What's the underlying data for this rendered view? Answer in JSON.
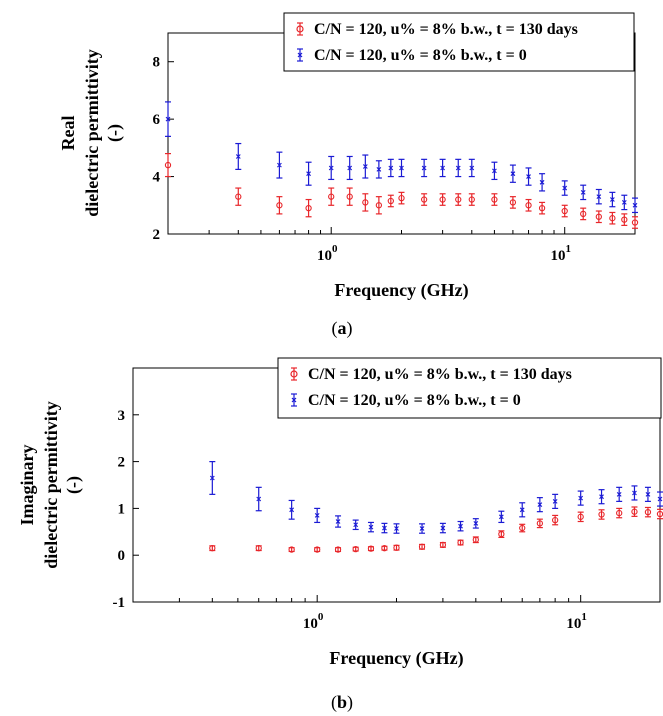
{
  "figure": {
    "caption_a": {
      "open": "(",
      "letter": "a",
      "close": ")"
    },
    "caption_b": {
      "open": "(",
      "letter": "b",
      "close": ")"
    }
  },
  "chart_data": [
    {
      "id": "a",
      "type": "scatter",
      "xlabel": "Frequency (GHz)",
      "ylabel_lines": [
        "Real",
        "dielectric permittivity",
        "(-)"
      ],
      "xscale": "log",
      "xlim": [
        0.2,
        20
      ],
      "ylim": [
        2,
        9
      ],
      "xticks": [
        {
          "value": 1,
          "base": "10",
          "exp": "0"
        },
        {
          "value": 10,
          "base": "10",
          "exp": "1"
        }
      ],
      "yticks": [
        2,
        4,
        6,
        8
      ],
      "grid": false,
      "legend_position": "top-right",
      "series": [
        {
          "name": "C/N = 120, u% = 8% b.w., t = 130 days",
          "color": "#e8262a",
          "marker": "circle",
          "x": [
            0.2,
            0.4,
            0.6,
            0.8,
            1.0,
            1.2,
            1.4,
            1.6,
            1.8,
            2.0,
            2.5,
            3.0,
            3.5,
            4.0,
            5.0,
            6.0,
            7.0,
            8.0,
            10.0,
            12.0,
            14.0,
            16.0,
            18.0,
            20.0
          ],
          "y": [
            4.4,
            3.3,
            3.0,
            2.9,
            3.3,
            3.3,
            3.1,
            3.0,
            3.15,
            3.25,
            3.2,
            3.2,
            3.2,
            3.2,
            3.2,
            3.1,
            3.0,
            2.9,
            2.8,
            2.7,
            2.6,
            2.55,
            2.5,
            2.4
          ],
          "err": [
            0.4,
            0.3,
            0.3,
            0.3,
            0.3,
            0.3,
            0.3,
            0.3,
            0.2,
            0.2,
            0.2,
            0.2,
            0.2,
            0.2,
            0.2,
            0.2,
            0.2,
            0.2,
            0.2,
            0.2,
            0.2,
            0.2,
            0.2,
            0.2
          ]
        },
        {
          "name": "C/N = 120, u% = 8% b.w., t = 0",
          "color": "#1a1ad4",
          "marker": "x",
          "x": [
            0.2,
            0.4,
            0.6,
            0.8,
            1.0,
            1.2,
            1.4,
            1.6,
            1.8,
            2.0,
            2.5,
            3.0,
            3.5,
            4.0,
            5.0,
            6.0,
            7.0,
            8.0,
            10.0,
            12.0,
            14.0,
            16.0,
            18.0,
            20.0
          ],
          "y": [
            6.0,
            4.7,
            4.4,
            4.1,
            4.3,
            4.3,
            4.35,
            4.25,
            4.3,
            4.3,
            4.3,
            4.3,
            4.3,
            4.3,
            4.2,
            4.1,
            4.0,
            3.8,
            3.6,
            3.45,
            3.3,
            3.2,
            3.1,
            3.0
          ],
          "err": [
            0.6,
            0.45,
            0.45,
            0.4,
            0.4,
            0.4,
            0.4,
            0.3,
            0.3,
            0.3,
            0.3,
            0.3,
            0.3,
            0.3,
            0.3,
            0.3,
            0.3,
            0.3,
            0.25,
            0.25,
            0.25,
            0.25,
            0.25,
            0.25
          ]
        }
      ]
    },
    {
      "id": "b",
      "type": "scatter",
      "xlabel": "Frequency (GHz)",
      "ylabel_lines": [
        "Imaginary",
        "dielectric permittivity",
        "(-)"
      ],
      "xscale": "log",
      "xlim": [
        0.2,
        20
      ],
      "ylim": [
        -1,
        4
      ],
      "xticks": [
        {
          "value": 1,
          "base": "10",
          "exp": "0"
        },
        {
          "value": 10,
          "base": "10",
          "exp": "1"
        }
      ],
      "yticks": [
        -1,
        0,
        1,
        2,
        3
      ],
      "grid": false,
      "legend_position": "top-right",
      "series": [
        {
          "name": "C/N = 120, u% = 8% b.w., t = 130 days",
          "color": "#e8262a",
          "marker": "circle",
          "x": [
            0.4,
            0.6,
            0.8,
            1.0,
            1.2,
            1.4,
            1.6,
            1.8,
            2.0,
            2.5,
            3.0,
            3.5,
            4.0,
            5.0,
            6.0,
            7.0,
            8.0,
            10.0,
            12.0,
            14.0,
            16.0,
            18.0,
            20.0
          ],
          "y": [
            0.15,
            0.15,
            0.12,
            0.12,
            0.12,
            0.13,
            0.14,
            0.15,
            0.16,
            0.18,
            0.22,
            0.27,
            0.33,
            0.45,
            0.58,
            0.68,
            0.75,
            0.82,
            0.87,
            0.9,
            0.93,
            0.92,
            0.88
          ],
          "err": [
            0.05,
            0.05,
            0.04,
            0.04,
            0.04,
            0.04,
            0.04,
            0.04,
            0.05,
            0.05,
            0.05,
            0.05,
            0.06,
            0.07,
            0.08,
            0.09,
            0.1,
            0.1,
            0.1,
            0.1,
            0.1,
            0.1,
            0.1
          ]
        },
        {
          "name": "C/N = 120, u% = 8% b.w., t = 0",
          "color": "#1a1ad4",
          "marker": "x",
          "x": [
            0.4,
            0.6,
            0.8,
            1.0,
            1.2,
            1.4,
            1.6,
            1.8,
            2.0,
            2.5,
            3.0,
            3.5,
            4.0,
            5.0,
            6.0,
            7.0,
            8.0,
            10.0,
            12.0,
            14.0,
            16.0,
            18.0,
            20.0
          ],
          "y": [
            1.65,
            1.2,
            0.97,
            0.85,
            0.72,
            0.65,
            0.6,
            0.58,
            0.57,
            0.57,
            0.58,
            0.62,
            0.68,
            0.82,
            0.97,
            1.08,
            1.15,
            1.22,
            1.25,
            1.3,
            1.33,
            1.3,
            1.2
          ],
          "err": [
            0.35,
            0.25,
            0.2,
            0.15,
            0.12,
            0.1,
            0.1,
            0.1,
            0.1,
            0.1,
            0.1,
            0.1,
            0.1,
            0.12,
            0.15,
            0.15,
            0.15,
            0.15,
            0.15,
            0.15,
            0.15,
            0.15,
            0.15
          ]
        }
      ]
    }
  ]
}
